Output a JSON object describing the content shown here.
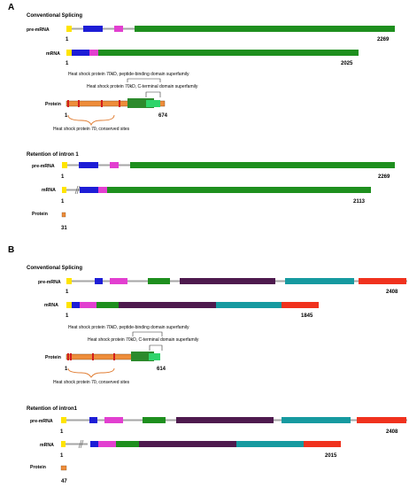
{
  "panels": [
    {
      "letter": "A",
      "sections": [
        {
          "title": "Conventional Splicing",
          "premrna": {
            "label": "pre-mRNA",
            "start": "1",
            "end": "2269"
          },
          "mrna": {
            "label": "mRNA",
            "start": "1",
            "end": "2025"
          },
          "protein": {
            "label": "Protein",
            "start": "1",
            "end": "674",
            "annotations": {
              "pbd": "Heat shock protein 70kD, peptide-binding domain superfamily",
              "cterm": "Heat shock protein 70kD, C-terminal domain superfamily",
              "conserved": "Heat shock protein 70, conserved sites"
            }
          }
        },
        {
          "title": "Retention of intron 1",
          "premrna": {
            "label": "pre-mRNA",
            "start": "1",
            "end": "2269"
          },
          "mrna": {
            "label": "mRNA",
            "start": "1",
            "end": "2113"
          },
          "protein": {
            "label": "Protein",
            "end": "31"
          }
        }
      ]
    },
    {
      "letter": "B",
      "sections": [
        {
          "title": "Conventional Splicing",
          "premrna": {
            "label": "pre-mRNA",
            "start": "1",
            "end": "2408"
          },
          "mrna": {
            "label": "mRNA",
            "start": "1",
            "end": "1845"
          },
          "protein": {
            "label": "Protein",
            "start": "1",
            "end": "614",
            "annotations": {
              "pbd": "Heat shock protein 70kD, peptide-binding domain superfamily",
              "cterm": "Heat shock protein 70kD, C-terminal domain superfamily",
              "conserved": "Heat shock protein 70, conserved sites"
            }
          }
        },
        {
          "title": "Retention of intron1",
          "premrna": {
            "label": "pre-mRNA",
            "start": "1",
            "end": "2408"
          },
          "mrna": {
            "label": "mRNA",
            "start": "1",
            "end": "2015"
          },
          "protein": {
            "label": "Protein",
            "end": "47"
          }
        }
      ]
    }
  ],
  "colors": {
    "intron": "#a6a6a6",
    "utr5": "#ffe400",
    "exon_blue": "#1d1dd6",
    "exon_magenta": "#e23fd0",
    "exon_green": "#1e8f1e",
    "exon_purple": "#4e1a4e",
    "exon_teal": "#169aa0",
    "exon_red": "#f0321e",
    "protein_orange": "#ee8d3a",
    "conserved_site": "#d21e1e",
    "domain_pbd": "#2c8a2c",
    "domain_cterm": "#2fd46a"
  }
}
